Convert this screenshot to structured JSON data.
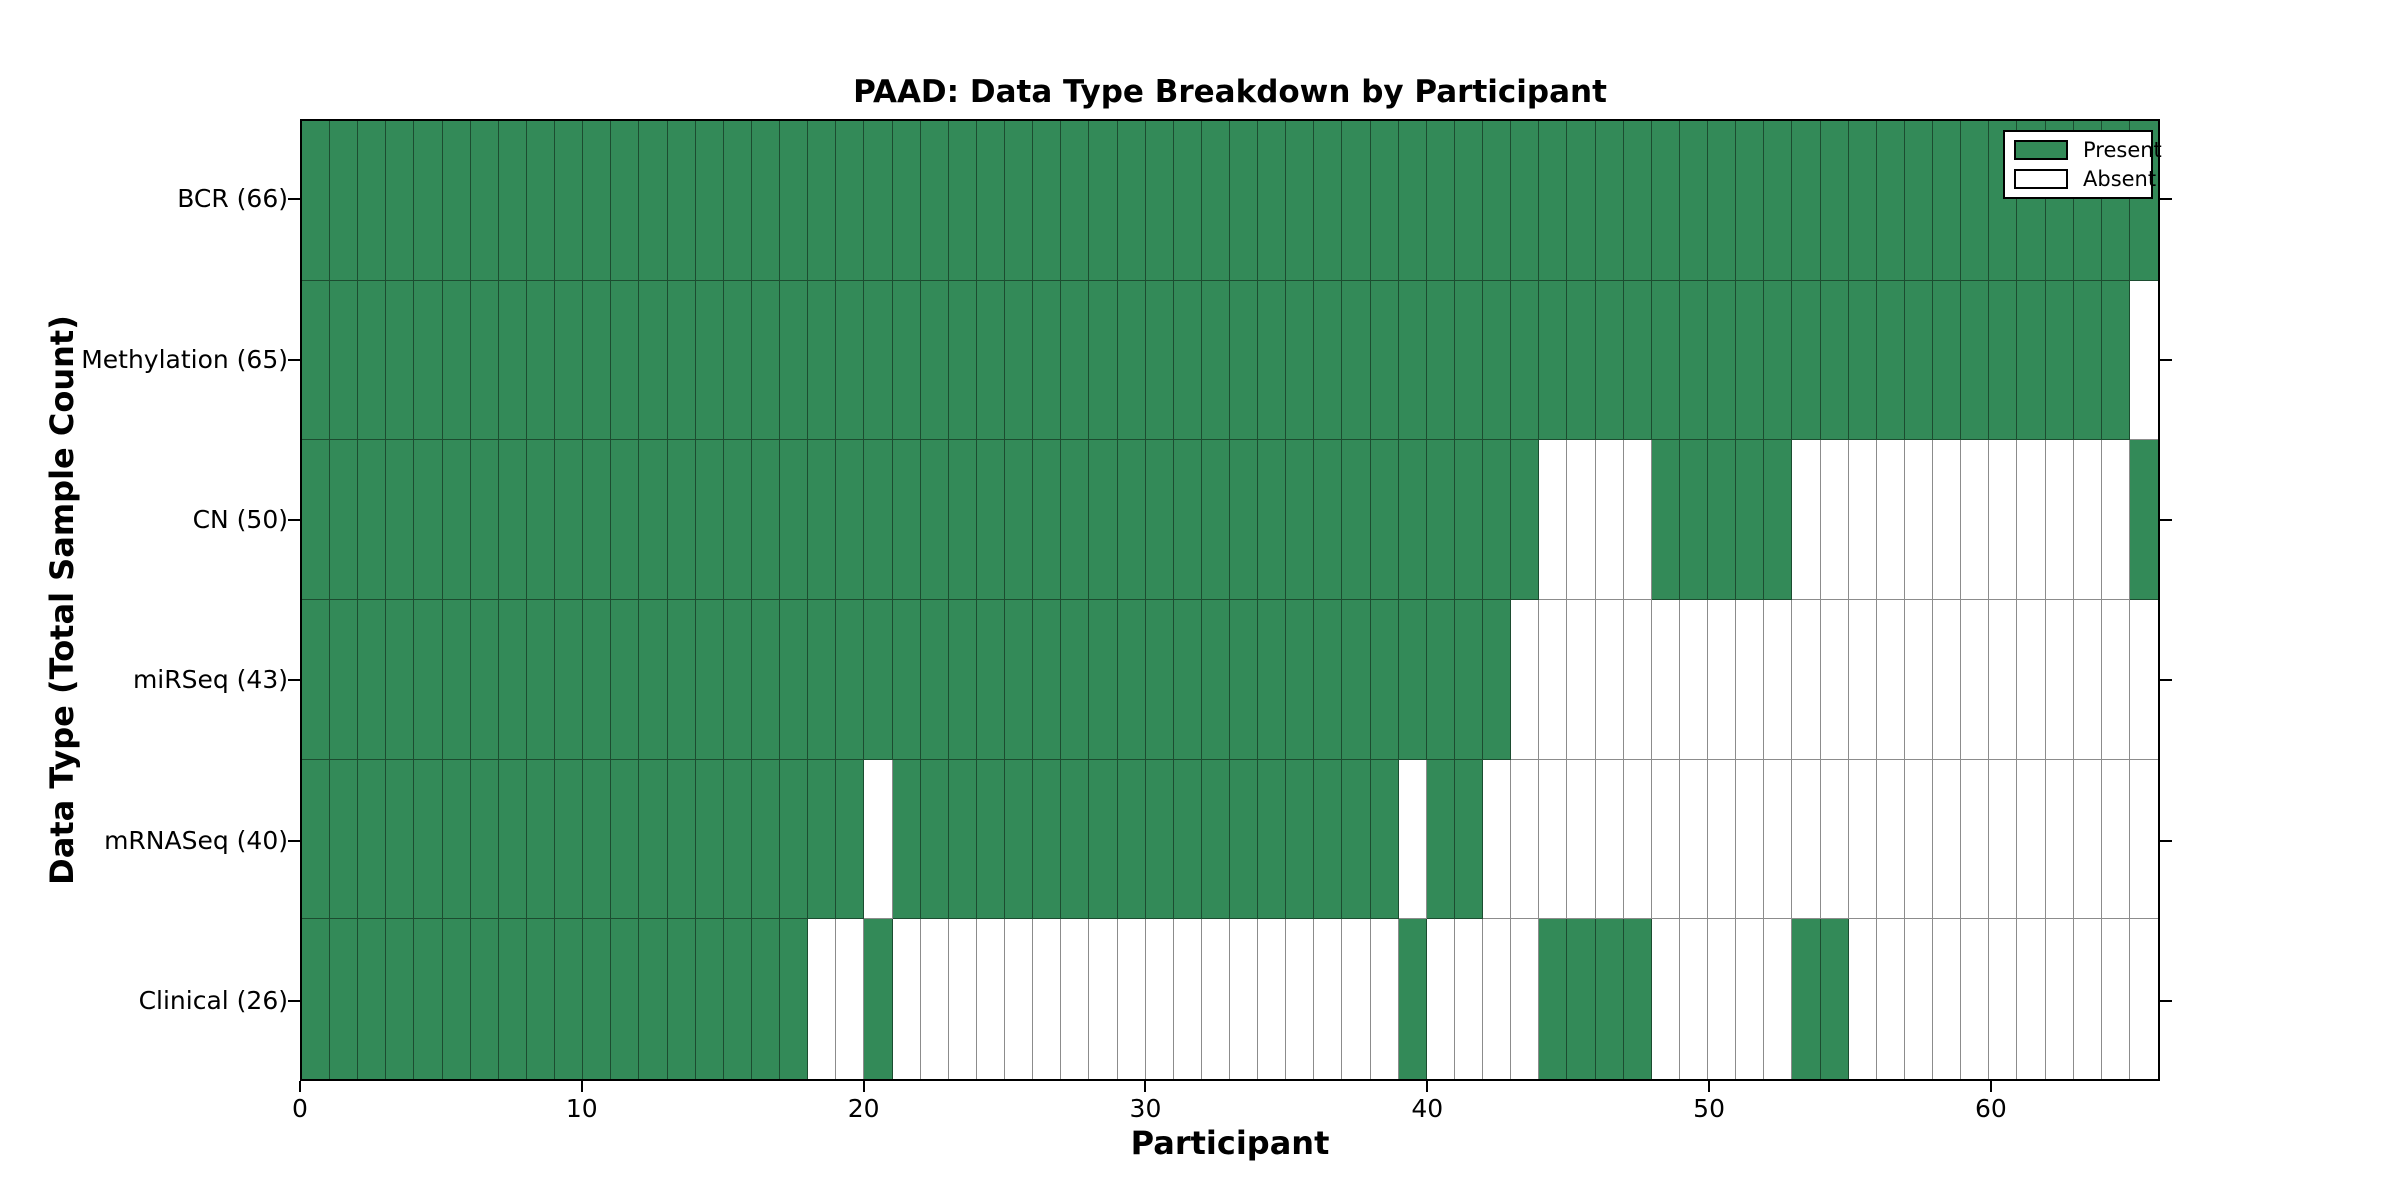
{
  "title": "PAAD: Data Type Breakdown by Participant",
  "x_axis_label": "Participant",
  "y_axis_label": "Data Type (Total Sample Count)",
  "legend": {
    "items": [
      {
        "label": "Present",
        "swatch": "present"
      },
      {
        "label": "Absent",
        "swatch": "absent"
      }
    ]
  },
  "colors": {
    "present": "#338a58",
    "absent": "#ffffff",
    "grid": "rgba(0,0,0,0.45)",
    "axis": "#000000"
  },
  "chart_data": {
    "type": "heatmap",
    "title": "PAAD: Data Type Breakdown by Participant",
    "xlabel": "Participant",
    "ylabel": "Data Type (Total Sample Count)",
    "x_range": [
      0,
      66
    ],
    "n_participants": 66,
    "x_ticks": [
      0,
      10,
      20,
      30,
      40,
      50,
      60
    ],
    "legend_entries": [
      "Present",
      "Absent"
    ],
    "legend_position": "upper right",
    "cell_values": {
      "present": 1,
      "absent": 0
    },
    "rows": [
      {
        "label": "BCR (66)",
        "total_samples": 66,
        "present_ranges": [
          [
            0,
            65
          ]
        ]
      },
      {
        "label": "Methylation (65)",
        "total_samples": 65,
        "present_ranges": [
          [
            0,
            64
          ]
        ]
      },
      {
        "label": "CN (50)",
        "total_samples": 50,
        "present_ranges": [
          [
            0,
            43
          ],
          [
            48,
            52
          ],
          [
            65,
            65
          ]
        ]
      },
      {
        "label": "miRSeq (43)",
        "total_samples": 43,
        "present_ranges": [
          [
            0,
            42
          ]
        ]
      },
      {
        "label": "mRNASeq (40)",
        "total_samples": 40,
        "present_ranges": [
          [
            0,
            19
          ],
          [
            21,
            38
          ],
          [
            40,
            41
          ]
        ]
      },
      {
        "label": "Clinical (26)",
        "total_samples": 26,
        "present_ranges": [
          [
            0,
            17
          ],
          [
            20,
            20
          ],
          [
            39,
            39
          ],
          [
            44,
            47
          ],
          [
            53,
            54
          ]
        ]
      }
    ]
  }
}
